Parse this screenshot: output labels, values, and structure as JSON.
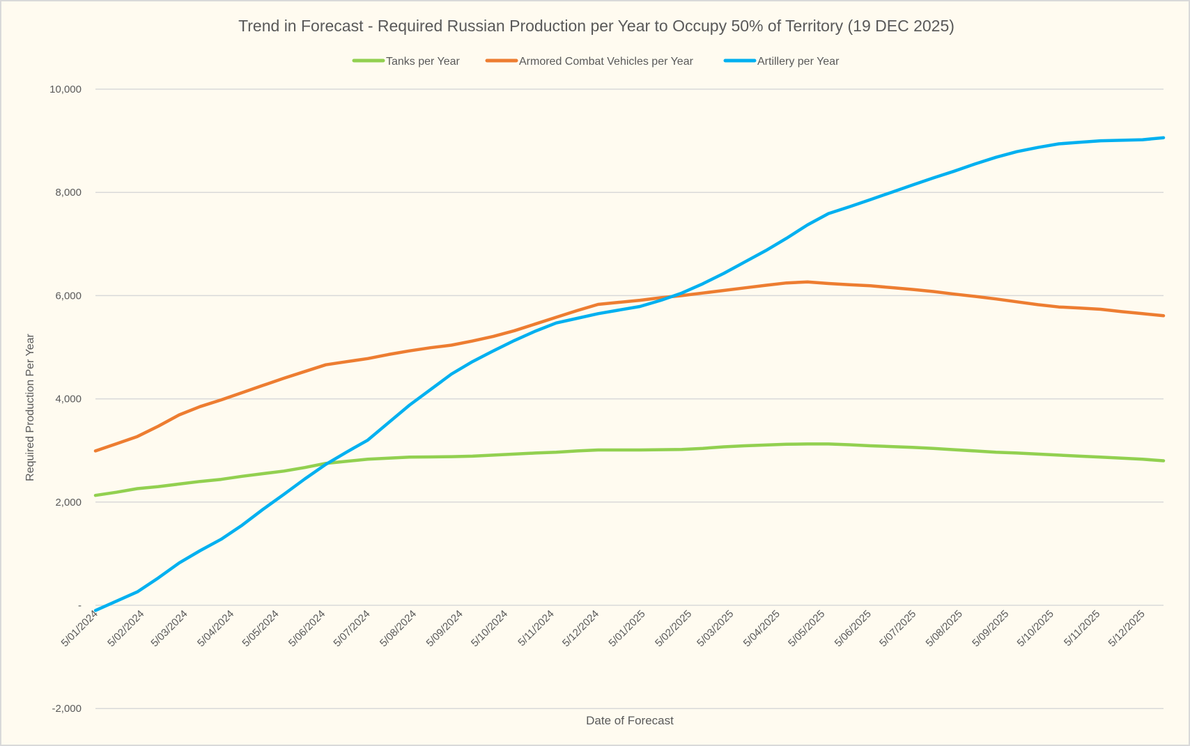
{
  "chart_data": {
    "type": "line",
    "title": "Trend in Forecast - Required Russian Production per Year to Occupy 50% of Territory (19 DEC 2025)",
    "xlabel": "Date of Forecast",
    "ylabel": "Required Production Per Year",
    "ylim": [
      -2000,
      10000
    ],
    "y_ticks": [
      -2000,
      0,
      2000,
      4000,
      6000,
      8000,
      10000
    ],
    "y_tick_labels": [
      "-2,000",
      "-",
      "2,000",
      "4,000",
      "6,000",
      "8,000",
      "10,000"
    ],
    "x_tick_labels": [
      "5/01/2024",
      "5/02/2024",
      "5/03/2024",
      "5/04/2024",
      "5/05/2024",
      "5/06/2024",
      "5/07/2024",
      "5/08/2024",
      "5/09/2024",
      "5/10/2024",
      "5/11/2024",
      "5/12/2024",
      "5/01/2025",
      "5/02/2025",
      "5/03/2025",
      "5/04/2025",
      "5/05/2025",
      "5/06/2025",
      "5/07/2025",
      "5/08/2025",
      "5/09/2025",
      "5/10/2025",
      "5/11/2025",
      "5/12/2025"
    ],
    "x_tick_dates": [
      "2024-01-05",
      "2024-02-05",
      "2024-03-05",
      "2024-04-05",
      "2024-05-05",
      "2024-06-05",
      "2024-07-05",
      "2024-08-05",
      "2024-09-05",
      "2024-10-05",
      "2024-11-05",
      "2024-12-05",
      "2025-01-05",
      "2025-02-05",
      "2025-03-05",
      "2025-04-05",
      "2025-05-05",
      "2025-06-05",
      "2025-07-05",
      "2025-08-05",
      "2025-09-05",
      "2025-10-05",
      "2025-11-05",
      "2025-12-05"
    ],
    "xlim": [
      "2024-01-05",
      "2025-12-19"
    ],
    "grid": true,
    "legend": "top",
    "x": [
      "2024-01-05",
      "2024-01-19",
      "2024-02-02",
      "2024-02-16",
      "2024-03-01",
      "2024-03-15",
      "2024-03-29",
      "2024-04-12",
      "2024-04-26",
      "2024-05-10",
      "2024-05-24",
      "2024-06-07",
      "2024-06-21",
      "2024-07-05",
      "2024-07-19",
      "2024-08-02",
      "2024-08-16",
      "2024-08-30",
      "2024-09-13",
      "2024-09-27",
      "2024-10-11",
      "2024-10-25",
      "2024-11-08",
      "2024-11-22",
      "2024-12-06",
      "2024-12-20",
      "2025-01-03",
      "2025-01-17",
      "2025-01-31",
      "2025-02-14",
      "2025-02-28",
      "2025-03-14",
      "2025-03-28",
      "2025-04-11",
      "2025-04-25",
      "2025-05-09",
      "2025-05-23",
      "2025-06-06",
      "2025-06-20",
      "2025-07-04",
      "2025-07-18",
      "2025-08-01",
      "2025-08-15",
      "2025-08-29",
      "2025-09-12",
      "2025-09-26",
      "2025-10-10",
      "2025-10-24",
      "2025-11-07",
      "2025-11-21",
      "2025-12-05",
      "2025-12-19"
    ],
    "series": [
      {
        "name": "Tanks per Year",
        "color": "#92D050",
        "values": [
          2130,
          2190,
          2260,
          2300,
          2350,
          2400,
          2440,
          2500,
          2550,
          2600,
          2670,
          2750,
          2790,
          2830,
          2850,
          2870,
          2875,
          2880,
          2890,
          2910,
          2930,
          2950,
          2965,
          2990,
          3010,
          3010,
          3010,
          3015,
          3020,
          3040,
          3070,
          3090,
          3105,
          3120,
          3125,
          3125,
          3110,
          3090,
          3075,
          3060,
          3040,
          3015,
          2990,
          2965,
          2950,
          2930,
          2910,
          2890,
          2870,
          2850,
          2830,
          2800
        ]
      },
      {
        "name": "Armored Combat Vehicles per Year",
        "color": "#ED7D31",
        "values": [
          2990,
          3130,
          3270,
          3470,
          3690,
          3850,
          3980,
          4120,
          4260,
          4400,
          4530,
          4660,
          4720,
          4780,
          4860,
          4930,
          4990,
          5040,
          5120,
          5210,
          5320,
          5450,
          5580,
          5710,
          5830,
          5870,
          5910,
          5960,
          6000,
          6050,
          6100,
          6150,
          6200,
          6245,
          6265,
          6235,
          6210,
          6190,
          6155,
          6120,
          6080,
          6030,
          5985,
          5935,
          5880,
          5825,
          5780,
          5760,
          5735,
          5690,
          5650,
          5610
        ]
      },
      {
        "name": "Artillery per Year",
        "color": "#00B0F0",
        "values": [
          -100,
          80,
          260,
          530,
          820,
          1060,
          1280,
          1550,
          1860,
          2150,
          2450,
          2730,
          2970,
          3200,
          3540,
          3880,
          4180,
          4480,
          4720,
          4930,
          5130,
          5310,
          5470,
          5560,
          5650,
          5720,
          5790,
          5910,
          6050,
          6230,
          6430,
          6650,
          6870,
          7110,
          7370,
          7590,
          7720,
          7860,
          8000,
          8140,
          8280,
          8410,
          8550,
          8680,
          8790,
          8870,
          8940,
          8970,
          9000,
          9010,
          9020,
          9060
        ]
      }
    ]
  }
}
